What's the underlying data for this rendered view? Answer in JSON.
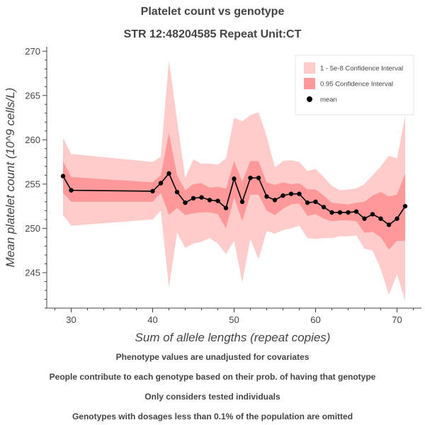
{
  "chart_data": {
    "type": "line",
    "title": "Platelet count vs genotype",
    "subtitle": "STR 12:48204585 Repeat Unit:CT",
    "xlabel": "Sum of allele lengths (repeat copies)",
    "ylabel": "Mean platelet count (10^9 cells/L)",
    "xlim": [
      27,
      73
    ],
    "ylim": [
      241,
      270.5
    ],
    "x_ticks": [
      30,
      40,
      50,
      60,
      70
    ],
    "y_ticks": [
      245,
      250,
      255,
      260,
      265,
      270
    ],
    "legend_position": "top-right",
    "legend": [
      {
        "label": "1 - 5e-8 Confidence Interval",
        "color": "#ffcccc",
        "kind": "band_wide"
      },
      {
        "label": "0.95 Confidence Interval",
        "color": "#ff9999",
        "kind": "band_95"
      },
      {
        "label": "mean",
        "color": "#000000",
        "kind": "point"
      }
    ],
    "x": [
      29,
      30,
      40,
      41,
      42,
      43,
      44,
      45,
      46,
      47,
      48,
      49,
      50,
      51,
      52,
      53,
      54,
      55,
      56,
      57,
      58,
      59,
      60,
      61,
      62,
      63,
      64,
      65,
      66,
      67,
      68,
      69,
      70,
      71
    ],
    "series": [
      {
        "name": "mean",
        "values": [
          255.9,
          254.3,
          254.2,
          255.1,
          256.2,
          254.1,
          252.9,
          253.4,
          253.5,
          253.2,
          253.1,
          252.3,
          255.6,
          253.0,
          255.7,
          255.7,
          253.6,
          253.2,
          253.7,
          253.9,
          253.9,
          252.9,
          253.0,
          252.4,
          251.8,
          251.8,
          251.8,
          251.9,
          251.1,
          251.6,
          251.1,
          250.4,
          251.1,
          252.5
        ]
      },
      {
        "name": "0.95 Confidence Interval lower",
        "values": [
          254.0,
          253.0,
          253.0,
          254.0,
          251.5,
          252.3,
          251.5,
          251.7,
          251.8,
          251.8,
          251.6,
          250.0,
          253.5,
          250.8,
          253.8,
          253.8,
          252.0,
          251.5,
          252.2,
          252.7,
          252.8,
          251.4,
          251.6,
          251.1,
          250.8,
          250.9,
          250.9,
          250.8,
          249.5,
          249.6,
          249.0,
          247.6,
          248.6,
          248.6
        ]
      },
      {
        "name": "0.95 Confidence Interval upper",
        "values": [
          257.6,
          255.8,
          255.2,
          256.0,
          260.8,
          256.0,
          254.3,
          255.0,
          255.1,
          254.6,
          254.7,
          254.5,
          257.6,
          255.3,
          257.6,
          257.6,
          255.2,
          254.9,
          255.2,
          255.0,
          255.1,
          254.4,
          254.4,
          253.7,
          252.9,
          252.8,
          252.7,
          252.9,
          253.0,
          253.7,
          254.1,
          253.6,
          253.8,
          256.2
        ]
      },
      {
        "name": "1 - 5e-8 Confidence Interval lower",
        "values": [
          251.5,
          250.3,
          251.0,
          252.0,
          243.3,
          249.5,
          247.8,
          248.3,
          248.5,
          248.9,
          248.3,
          247.1,
          248.6,
          243.9,
          248.8,
          246.5,
          249.7,
          249.4,
          249.8,
          250.0,
          250.3,
          248.9,
          248.8,
          248.9,
          248.9,
          249.1,
          249.1,
          249.2,
          247.7,
          247.5,
          245.4,
          242.5,
          244.8,
          241.8
        ]
      },
      {
        "name": "1 - 5e-8 Confidence Interval upper",
        "values": [
          260.2,
          258.4,
          257.5,
          258.1,
          269.0,
          262.2,
          255.7,
          257.8,
          257.3,
          257.3,
          257.2,
          257.9,
          262.5,
          262.1,
          262.8,
          263.1,
          260.4,
          256.9,
          257.6,
          257.7,
          257.5,
          256.5,
          256.7,
          255.8,
          254.8,
          254.3,
          254.4,
          254.5,
          255.0,
          256.0,
          257.0,
          258.2,
          257.9,
          262.7
        ]
      }
    ]
  },
  "notes": [
    "Phenotype values are unadjusted for covariates",
    "People contribute to each genotype based on their prob. of having that genotype",
    "Only considers tested individuals",
    "Genotypes with dosages less than 0.1% of the population are omitted"
  ]
}
